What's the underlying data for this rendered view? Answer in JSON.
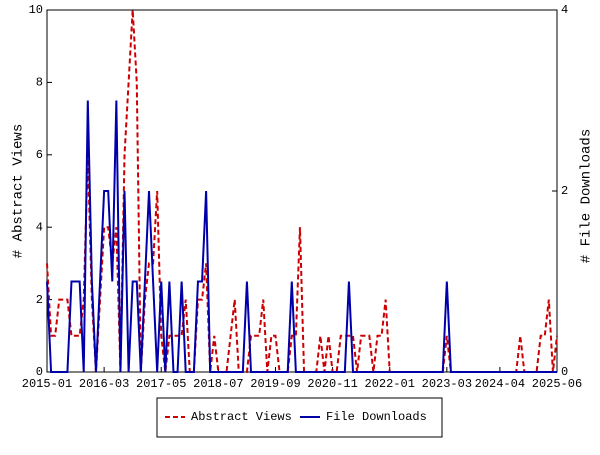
{
  "chart_data": {
    "type": "line",
    "y_label": "# Abstract Views",
    "y2_label": "# File Downloads",
    "categories": [
      "2015-01",
      null,
      null,
      null,
      null,
      null,
      null,
      null,
      null,
      null,
      null,
      null,
      null,
      null,
      "2016-03",
      null,
      null,
      null,
      null,
      null,
      null,
      null,
      null,
      null,
      null,
      null,
      null,
      null,
      "2017-05",
      null,
      null,
      null,
      null,
      null,
      null,
      null,
      null,
      null,
      null,
      null,
      null,
      null,
      "2018-07",
      null,
      null,
      null,
      null,
      null,
      null,
      null,
      null,
      null,
      null,
      null,
      null,
      null,
      "2019-09",
      null,
      null,
      null,
      null,
      null,
      null,
      null,
      null,
      null,
      null,
      null,
      null,
      null,
      "2020-11",
      null,
      null,
      null,
      null,
      null,
      null,
      null,
      null,
      null,
      null,
      null,
      null,
      null,
      "2022-01",
      null,
      null,
      null,
      null,
      null,
      null,
      null,
      null,
      null,
      null,
      null,
      null,
      null,
      "2023-03",
      null,
      null,
      null,
      null,
      null,
      null,
      null,
      null,
      null,
      null,
      null,
      null,
      "2024-04",
      null,
      null,
      null,
      null,
      null,
      null,
      null,
      null,
      null,
      null,
      null,
      null,
      null,
      "2025-06"
    ],
    "series": [
      {
        "name": "Abstract Views",
        "color": "#cc0000",
        "dashed": true,
        "values": [
          3,
          1,
          1,
          2,
          2,
          2,
          1,
          1,
          1,
          2,
          6,
          2,
          0,
          2,
          4,
          4,
          3,
          4,
          0,
          6,
          8,
          10,
          8,
          0,
          2,
          3,
          3,
          5,
          1,
          0,
          1,
          1,
          1,
          1,
          2,
          0,
          0,
          2,
          2,
          3,
          0,
          1,
          0,
          0,
          0,
          1,
          2,
          0,
          0,
          0,
          1,
          1,
          1,
          2,
          0,
          1,
          1,
          0,
          0,
          0,
          1,
          1,
          4,
          0,
          0,
          0,
          0,
          1,
          0,
          1,
          0,
          0,
          1,
          1,
          1,
          1,
          0,
          1,
          1,
          1,
          0,
          1,
          1,
          2,
          0,
          0,
          0,
          0,
          0,
          0,
          0,
          0,
          0,
          0,
          0,
          0,
          0,
          0,
          1,
          0,
          0,
          0,
          0,
          0,
          0,
          0,
          0,
          0,
          0,
          0,
          0,
          0,
          0,
          0,
          0,
          0,
          1,
          0,
          0,
          0,
          0,
          1,
          1,
          2,
          0,
          1
        ]
      },
      {
        "name": "File Downloads",
        "color": "#0000aa",
        "axis": "y2",
        "values": [
          1,
          0,
          0,
          0,
          0,
          0,
          1,
          1,
          1,
          0,
          3,
          1,
          0,
          1,
          2,
          2,
          1,
          3,
          0,
          2,
          0,
          1,
          1,
          0,
          1,
          2,
          1,
          0,
          1,
          0,
          1,
          0,
          0,
          1,
          0,
          0,
          0,
          1,
          1,
          2,
          0,
          0,
          0,
          0,
          0,
          0,
          0,
          0,
          0,
          1,
          0,
          0,
          0,
          0,
          0,
          0,
          0,
          0,
          0,
          0,
          1,
          0,
          0,
          0,
          0,
          0,
          0,
          0,
          0,
          0,
          0,
          0,
          0,
          0,
          1,
          0,
          0,
          0,
          0,
          0,
          0,
          0,
          0,
          0,
          0,
          0,
          0,
          0,
          0,
          0,
          0,
          0,
          0,
          0,
          0,
          0,
          0,
          0,
          1,
          0,
          0,
          0,
          0,
          0,
          0,
          0,
          0,
          0,
          0,
          0,
          0,
          0,
          0,
          0,
          0,
          0,
          0,
          0,
          0,
          0,
          0,
          0,
          0,
          0,
          0,
          0
        ]
      }
    ],
    "ylim": [
      0,
      10
    ],
    "yticks": [
      0,
      2,
      4,
      6,
      8,
      10
    ],
    "y2lim": [
      0,
      4
    ],
    "y2ticks": [
      0,
      2,
      4
    ],
    "legend": "bottom"
  }
}
